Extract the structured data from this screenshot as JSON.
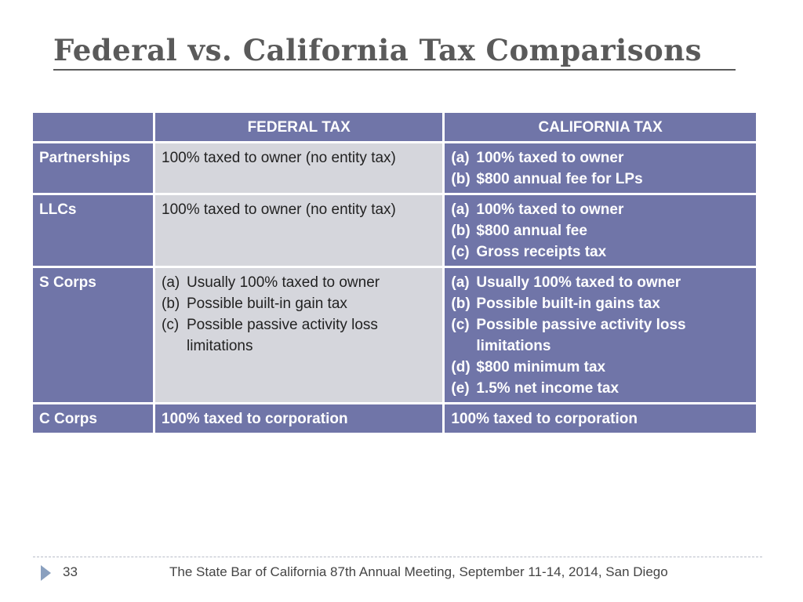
{
  "slide": {
    "title": "Federal vs. California Tax Comparisons",
    "page_number": "33",
    "footer": "The State Bar of California 87th Annual Meeting,  September 11-14,  2014,  San Diego"
  },
  "table": {
    "headers": [
      "",
      "FEDERAL TAX",
      "CALIFORNIA TAX"
    ],
    "rows": [
      {
        "entity": "Partnerships",
        "federal": "100% taxed to owner (no entity tax)",
        "california": [
          {
            "marker": "(a)",
            "text": "100% taxed to owner"
          },
          {
            "marker": "(b)",
            "text": "$800 annual fee for LPs"
          }
        ]
      },
      {
        "entity": "LLCs",
        "federal": "100% taxed to owner (no entity tax)",
        "california": [
          {
            "marker": "(a)",
            "text": "100% taxed to owner"
          },
          {
            "marker": "(b)",
            "text": "$800 annual fee"
          },
          {
            "marker": "(c)",
            "text": "Gross receipts tax"
          }
        ]
      },
      {
        "entity": "S Corps",
        "federal": [
          {
            "marker": "(a)",
            "text": "Usually 100% taxed to owner"
          },
          {
            "marker": "(b)",
            "text": "Possible built-in gain tax"
          },
          {
            "marker": "(c)",
            "text": "Possible passive activity loss limitations"
          }
        ],
        "california": [
          {
            "marker": "(a)",
            "text": "Usually 100% taxed to owner"
          },
          {
            "marker": "(b)",
            "text": "Possible built-in gains tax"
          },
          {
            "marker": "(c)",
            "text": "Possible passive activity loss limitations"
          },
          {
            "marker": "(d)",
            "text": "$800 minimum tax"
          },
          {
            "marker": "(e)",
            "text": "1.5% net income tax"
          }
        ]
      },
      {
        "entity": "C Corps",
        "federal": "100% taxed to corporation",
        "california": "100% taxed to corporation"
      }
    ]
  },
  "colors": {
    "header_bg": "#7075a8",
    "light_cell_bg": "#d5d6dc",
    "title_color": "#5a5a5a",
    "footer_arrow": "#8aa0bf"
  },
  "icons": {
    "footer_marker": "triangle-right-icon"
  }
}
